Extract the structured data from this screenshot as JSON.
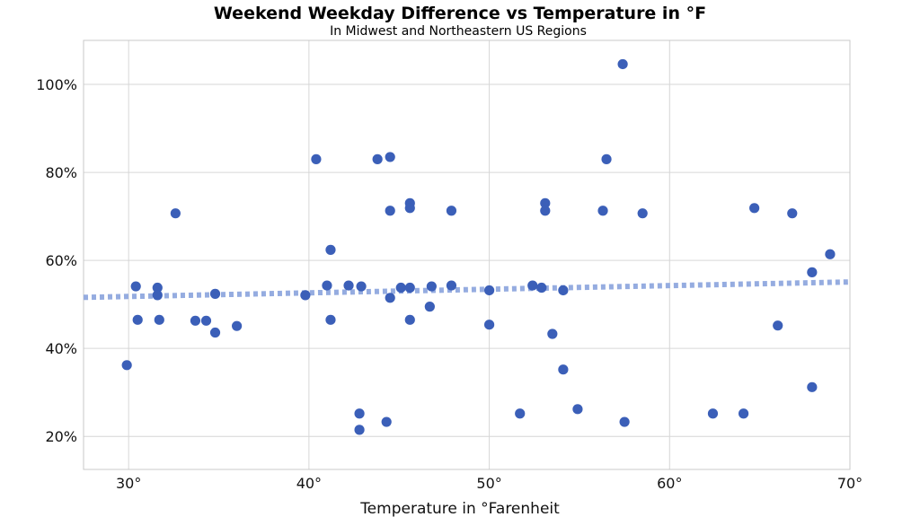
{
  "chart_data": {
    "type": "scatter",
    "title": "Weekend Weekday Difference vs Temperature in °F",
    "subtitle": "In Midwest and Northeastern US Regions",
    "xlabel": "Temperature in °Farenheit",
    "ylabel": "",
    "xlim": [
      27.5,
      70
    ],
    "ylim": [
      0.125,
      1.1
    ],
    "x_ticks": [
      30,
      40,
      50,
      60,
      70
    ],
    "x_tick_labels": [
      "30°",
      "40°",
      "50°",
      "60°",
      "70°"
    ],
    "y_ticks": [
      0.2,
      0.4,
      0.6,
      0.8,
      1.0
    ],
    "y_tick_labels": [
      "20%",
      "40%",
      "60%",
      "80%",
      "100%"
    ],
    "grid": true,
    "trendline": {
      "x": [
        27.5,
        70
      ],
      "y": [
        0.516,
        0.551
      ]
    },
    "points": [
      {
        "x": 29.9,
        "y": 0.362
      },
      {
        "x": 30.4,
        "y": 0.541
      },
      {
        "x": 30.5,
        "y": 0.465
      },
      {
        "x": 31.6,
        "y": 0.538
      },
      {
        "x": 31.6,
        "y": 0.521
      },
      {
        "x": 31.7,
        "y": 0.465
      },
      {
        "x": 32.6,
        "y": 0.707
      },
      {
        "x": 33.7,
        "y": 0.463
      },
      {
        "x": 34.3,
        "y": 0.463
      },
      {
        "x": 34.8,
        "y": 0.436
      },
      {
        "x": 34.8,
        "y": 0.524
      },
      {
        "x": 36.0,
        "y": 0.451
      },
      {
        "x": 39.8,
        "y": 0.521
      },
      {
        "x": 40.4,
        "y": 0.83
      },
      {
        "x": 41.0,
        "y": 0.543
      },
      {
        "x": 41.2,
        "y": 0.624
      },
      {
        "x": 41.2,
        "y": 0.465
      },
      {
        "x": 42.2,
        "y": 0.543
      },
      {
        "x": 42.8,
        "y": 0.252
      },
      {
        "x": 42.8,
        "y": 0.215
      },
      {
        "x": 42.9,
        "y": 0.541
      },
      {
        "x": 43.8,
        "y": 0.83
      },
      {
        "x": 44.3,
        "y": 0.233
      },
      {
        "x": 44.5,
        "y": 0.835
      },
      {
        "x": 44.5,
        "y": 0.713
      },
      {
        "x": 44.5,
        "y": 0.515
      },
      {
        "x": 45.1,
        "y": 0.538
      },
      {
        "x": 45.6,
        "y": 0.538
      },
      {
        "x": 45.6,
        "y": 0.73
      },
      {
        "x": 45.6,
        "y": 0.719
      },
      {
        "x": 45.6,
        "y": 0.465
      },
      {
        "x": 46.7,
        "y": 0.495
      },
      {
        "x": 46.8,
        "y": 0.541
      },
      {
        "x": 47.9,
        "y": 0.713
      },
      {
        "x": 47.9,
        "y": 0.543
      },
      {
        "x": 50.0,
        "y": 0.532
      },
      {
        "x": 50.0,
        "y": 0.454
      },
      {
        "x": 51.7,
        "y": 0.252
      },
      {
        "x": 52.4,
        "y": 0.543
      },
      {
        "x": 52.9,
        "y": 0.538
      },
      {
        "x": 53.1,
        "y": 0.73
      },
      {
        "x": 53.1,
        "y": 0.713
      },
      {
        "x": 53.5,
        "y": 0.433
      },
      {
        "x": 54.1,
        "y": 0.352
      },
      {
        "x": 54.1,
        "y": 0.532
      },
      {
        "x": 54.9,
        "y": 0.262
      },
      {
        "x": 56.3,
        "y": 0.713
      },
      {
        "x": 56.5,
        "y": 0.83
      },
      {
        "x": 57.4,
        "y": 1.046
      },
      {
        "x": 57.5,
        "y": 0.233
      },
      {
        "x": 58.5,
        "y": 0.707
      },
      {
        "x": 62.4,
        "y": 0.252
      },
      {
        "x": 64.1,
        "y": 0.252
      },
      {
        "x": 64.7,
        "y": 0.719
      },
      {
        "x": 66.0,
        "y": 0.452
      },
      {
        "x": 66.8,
        "y": 0.707
      },
      {
        "x": 67.9,
        "y": 0.573
      },
      {
        "x": 67.9,
        "y": 0.312
      },
      {
        "x": 68.9,
        "y": 0.614
      }
    ]
  }
}
